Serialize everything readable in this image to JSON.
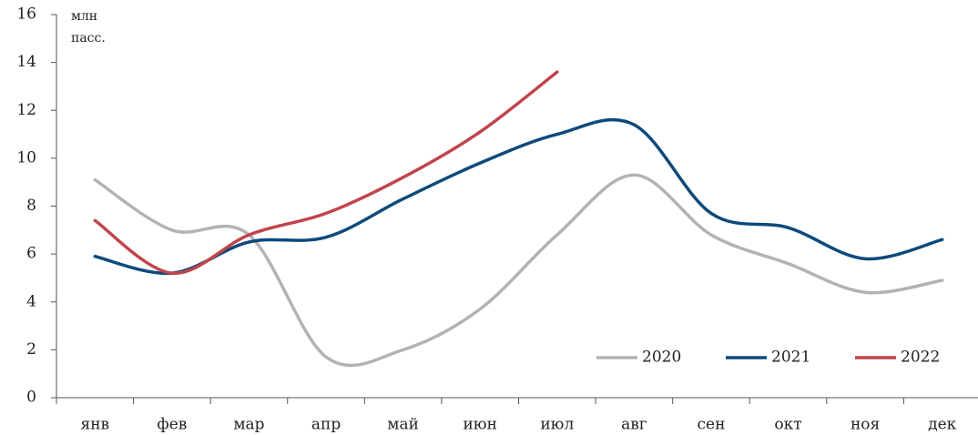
{
  "chart_data": {
    "type": "line",
    "y_unit": "млн пасс.",
    "categories": [
      "янв",
      "фев",
      "мар",
      "апр",
      "май",
      "июн",
      "июл",
      "авг",
      "сен",
      "окт",
      "ноя",
      "дек"
    ],
    "series": [
      {
        "name": "2020",
        "color": "#b3b3b3",
        "values": [
          9.1,
          7.0,
          6.8,
          1.7,
          2.0,
          3.7,
          6.8,
          9.3,
          6.8,
          5.6,
          4.4,
          4.9
        ]
      },
      {
        "name": "2021",
        "color": "#0d4a7a",
        "values": [
          5.9,
          5.2,
          6.5,
          6.7,
          8.3,
          9.8,
          11.0,
          11.4,
          7.7,
          7.1,
          5.8,
          6.6
        ]
      },
      {
        "name": "2022",
        "color": "#c0454c",
        "values": [
          7.4,
          5.2,
          6.8,
          7.7,
          9.2,
          11.1,
          13.6,
          null,
          null,
          null,
          null,
          null
        ]
      }
    ],
    "ylim": [
      0,
      16
    ],
    "yticks": [
      0,
      2,
      4,
      6,
      8,
      10,
      12,
      14,
      16
    ],
    "grid": false,
    "legend": "lower right"
  }
}
